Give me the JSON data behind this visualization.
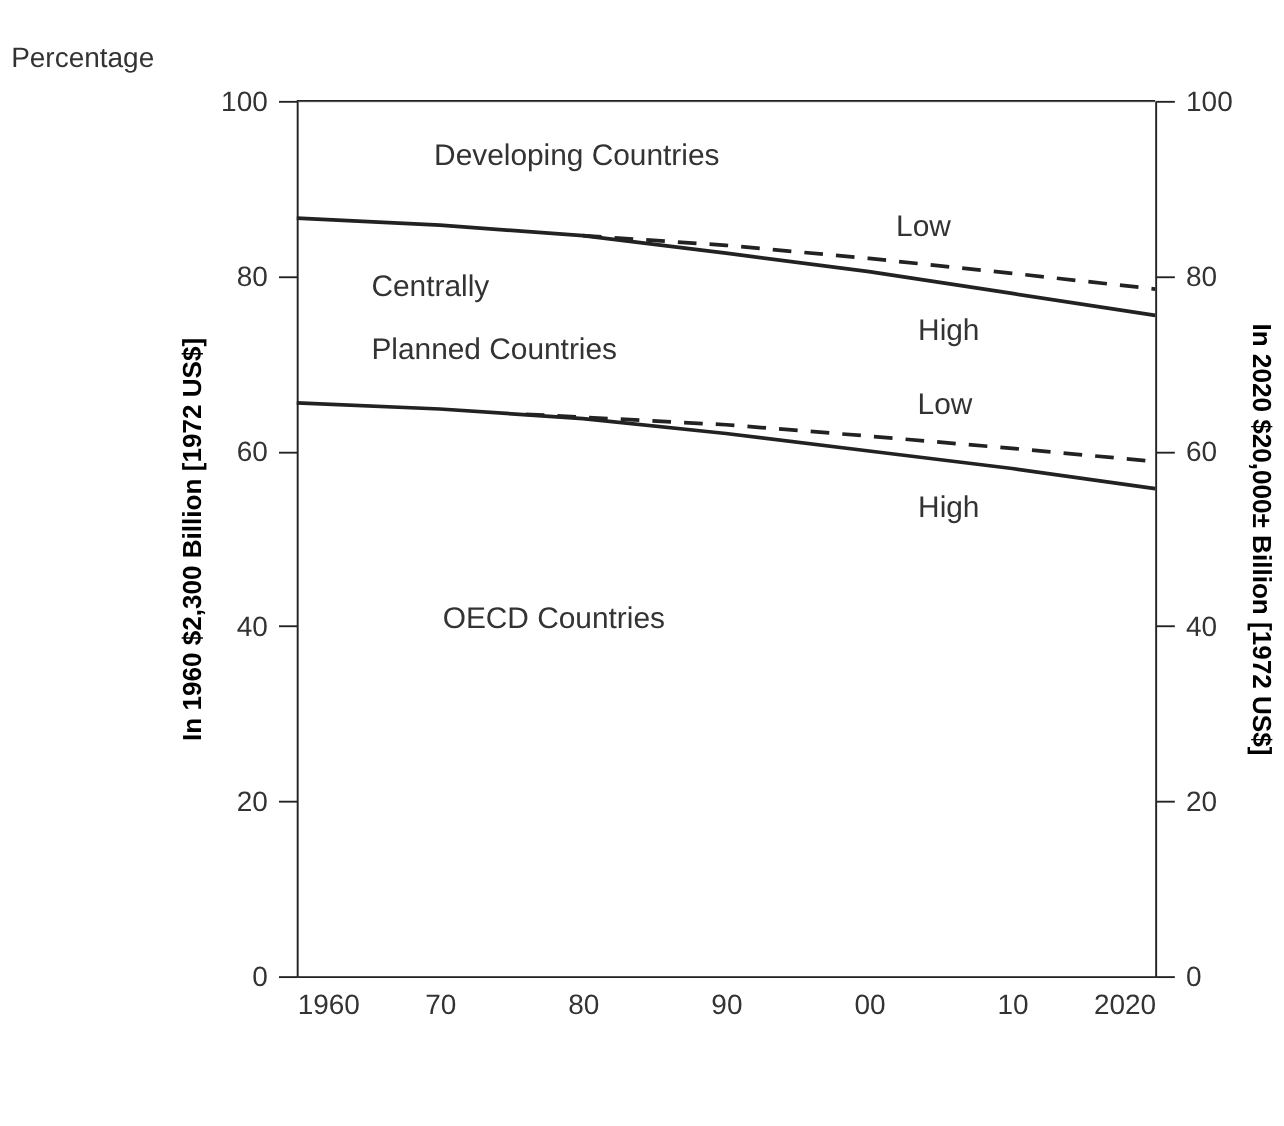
{
  "chart_data": {
    "type": "line",
    "title": "Percentage",
    "ylabel": "In 1960 $2,300 Billion [1972 US$]",
    "y2label": "In 2020 $20,000± Billion [1972 US$]",
    "xlim": [
      1960,
      2020
    ],
    "xticks": [
      1960,
      {
        "value": 1970,
        "label": "70"
      },
      {
        "value": 1980,
        "label": "80"
      },
      {
        "value": 1990,
        "label": "90"
      },
      {
        "value": 2000,
        "label": "00"
      },
      {
        "value": 2010,
        "label": "10"
      },
      2020
    ],
    "ylim": [
      0,
      100
    ],
    "yticks": [
      0,
      20,
      40,
      60,
      80,
      100
    ],
    "y2lim": [
      0,
      100
    ],
    "y2ticks": [
      0,
      20,
      40,
      60,
      80,
      100
    ],
    "grid": false,
    "marker": "none",
    "series": [
      {
        "color": "#222222",
        "line_style": "solid",
        "x": [
          1960,
          1970,
          1980,
          1990,
          2000,
          2010,
          2020
        ],
        "values": [
          86.6,
          85.8,
          84.6,
          82.6,
          80.5,
          78,
          75.5
        ]
      },
      {
        "color": "#222222",
        "line_style": "dashed",
        "x": [
          1980,
          1990,
          2000,
          2010,
          2020
        ],
        "values": [
          84.6,
          83.5,
          82,
          80.3,
          78.5
        ]
      },
      {
        "color": "#222222",
        "line_style": "solid",
        "x": [
          1960,
          1970,
          1980,
          1990,
          2000,
          2010,
          2020
        ],
        "values": [
          65.5,
          64.8,
          63.7,
          62,
          60,
          58,
          55.7
        ]
      },
      {
        "color": "#222222",
        "line_style": "dashed",
        "x": [
          1976,
          1990,
          2000,
          2010,
          2020
        ],
        "values": [
          64.2,
          63,
          61.7,
          60.3,
          58.8
        ]
      }
    ],
    "annotations": [
      "Developing Countries",
      "Centrally\nPlanned Countries",
      "OECD Countries",
      {
        "text": "Low",
        "x": 2006.5,
        "y": 80.9
      },
      {
        "text": "High",
        "x": 2008.5,
        "y": 78.4
      },
      {
        "text": "Low",
        "x": 2008,
        "y": 60.6
      },
      {
        "text": "High",
        "x": 2008.5,
        "y": 58.2
      }
    ]
  }
}
